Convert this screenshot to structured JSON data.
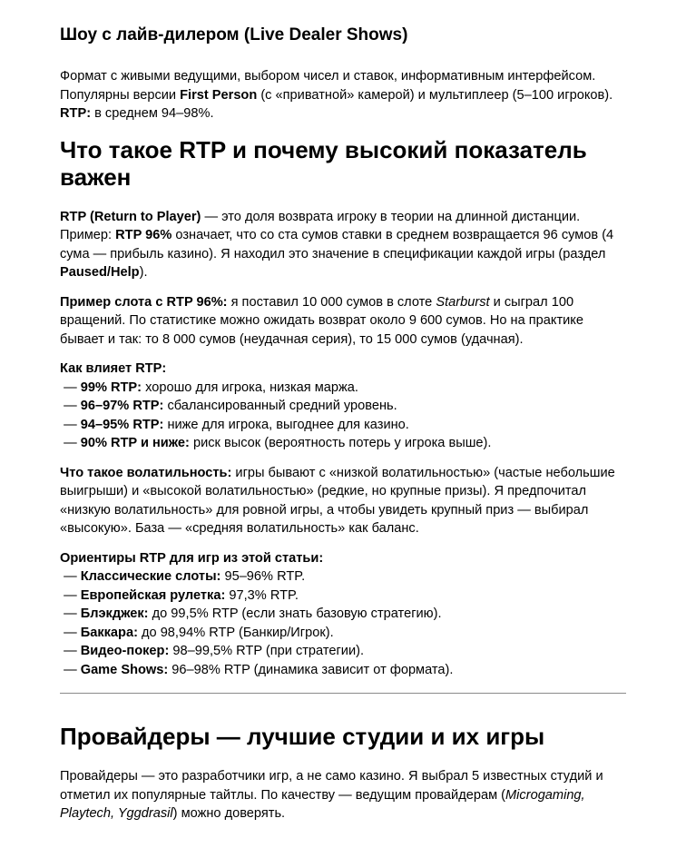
{
  "page": {
    "background_color": "#ffffff",
    "text_color": "#000000",
    "divider_color": "#8a8a8a"
  },
  "document": {
    "blocks": [
      {
        "type": "h3",
        "name": "heading-live-dealer-shows",
        "runs": [
          {
            "t": "Шоу с лайв-дилером (Live Dealer Shows)"
          }
        ]
      },
      {
        "type": "p",
        "name": "paragraph-live-dealer-format",
        "runs": [
          {
            "t": "Формат с живыми ведущими, выбором чисел и ставок, информативным интерфейсом. Популярны версии "
          },
          {
            "t": "First Person",
            "b": true
          },
          {
            "t": " (с «приватной» камерой) и мультиплеер (5–100 игроков). "
          },
          {
            "t": "RTP:",
            "b": true
          },
          {
            "t": " в среднем 94–98%."
          }
        ]
      },
      {
        "type": "h2",
        "name": "heading-what-is-rtp",
        "runs": [
          {
            "t": "Что такое RTP и почему высокий показатель важен"
          }
        ]
      },
      {
        "type": "p",
        "name": "paragraph-rtp-definition",
        "runs": [
          {
            "t": "RTP (Return to Player)",
            "b": true
          },
          {
            "t": " — это доля возврата игроку в теории на длинной дистанции. Пример: "
          },
          {
            "t": "RTP 96%",
            "b": true
          },
          {
            "t": " означает, что со ста сумов ставки в среднем возвращается 96 сумов (4 сума — прибыль казино). Я находил это значение в спецификации каждой игры (раздел "
          },
          {
            "t": "Paused/Help",
            "b": true
          },
          {
            "t": ")."
          }
        ]
      },
      {
        "type": "p",
        "name": "paragraph-rtp-slot-example",
        "runs": [
          {
            "t": "Пример слота с RTP 96%:",
            "b": true
          },
          {
            "t": " я поставил 10 000 сумов в слоте "
          },
          {
            "t": "Starburst",
            "i": true
          },
          {
            "t": " и сыграл 100 вращений. По статистике можно ожидать возврат около 9 600 сумов. Но на практике бывает и так: то 8 000 сумов (неудачная серия), то 15 000 сумов (удачная)."
          }
        ]
      },
      {
        "type": "p",
        "name": "list-rtp-impact",
        "runs": [
          {
            "t": "Как влияет RTP:",
            "b": true
          },
          {
            "t": "\n — "
          },
          {
            "t": "99% RTP:",
            "b": true
          },
          {
            "t": " хорошо для игрока, низкая маржа.\n — "
          },
          {
            "t": "96–97% RTP:",
            "b": true
          },
          {
            "t": " сбалансированный средний уровень.\n — "
          },
          {
            "t": "94–95% RTP:",
            "b": true
          },
          {
            "t": " ниже для игрока, выгоднее для казино.\n — "
          },
          {
            "t": "90% RTP и ниже:",
            "b": true
          },
          {
            "t": " риск высок (вероятность потерь у игрока выше)."
          }
        ]
      },
      {
        "type": "p",
        "name": "paragraph-volatility",
        "runs": [
          {
            "t": "Что такое волатильность:",
            "b": true
          },
          {
            "t": " игры бывают с «низкой волатильностью» (частые небольшие выигрыши) и «высокой волатильностью» (редкие, но крупные призы). Я предпочитал «низкую волатильность» для ровной игры, а чтобы увидеть крупный приз — выбирал «высокую». База — «средняя волатильность» как баланс."
          }
        ]
      },
      {
        "type": "p",
        "name": "list-rtp-benchmarks",
        "runs": [
          {
            "t": "Ориентиры RTP для игр из этой статьи:",
            "b": true
          },
          {
            "t": "\n — "
          },
          {
            "t": "Классические слоты:",
            "b": true
          },
          {
            "t": " 95–96% RTP.\n — "
          },
          {
            "t": "Европейская рулетка:",
            "b": true
          },
          {
            "t": " 97,3% RTP.\n — "
          },
          {
            "t": "Блэкджек:",
            "b": true
          },
          {
            "t": " до 99,5% RTP (если знать базовую стратегию).\n — "
          },
          {
            "t": "Баккара:",
            "b": true
          },
          {
            "t": " до 98,94% RTP (Банкир/Игрок).\n — "
          },
          {
            "t": "Видео-покер:",
            "b": true
          },
          {
            "t": " 98–99,5% RTP (при стратегии).\n — "
          },
          {
            "t": "Game Shows:",
            "b": true
          },
          {
            "t": " 96–98% RTP (динамика зависит от формата)."
          }
        ]
      },
      {
        "type": "hr",
        "name": "section-divider"
      },
      {
        "type": "h2",
        "name": "heading-providers",
        "runs": [
          {
            "t": "Провайдеры — лучшие студии и их игры"
          }
        ]
      },
      {
        "type": "p",
        "name": "paragraph-providers-intro",
        "runs": [
          {
            "t": "Провайдеры — это разработчики игр, а не само казино. Я выбрал 5 известных студий и отметил их популярные тайтлы. По качеству — ведущим провайдерам ("
          },
          {
            "t": "Microgaming, Playtech, Yggdrasil",
            "i": true
          },
          {
            "t": ") можно доверять."
          }
        ]
      }
    ]
  }
}
